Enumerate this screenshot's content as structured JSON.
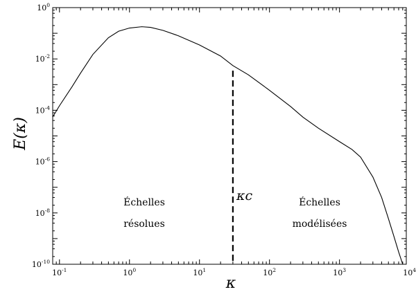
{
  "chart_data": {
    "type": "line",
    "xscale": "log",
    "yscale": "log",
    "xlim": [
      0.08,
      9000
    ],
    "ylim": [
      1e-10,
      1
    ],
    "xlabel": "κ",
    "ylabel": "E(κ)",
    "x_ticks": [
      {
        "value": 0.1,
        "base": "10",
        "exp": "-1"
      },
      {
        "value": 1,
        "base": "10",
        "exp": "0"
      },
      {
        "value": 10,
        "base": "10",
        "exp": "1"
      },
      {
        "value": 100,
        "base": "10",
        "exp": "2"
      },
      {
        "value": 1000,
        "base": "10",
        "exp": "3"
      },
      {
        "value": 10000,
        "base": "10",
        "exp": "4"
      }
    ],
    "y_ticks": [
      {
        "value": 1e-10,
        "base": "10",
        "exp": "-10"
      },
      {
        "value": 1e-08,
        "base": "10",
        "exp": "-8"
      },
      {
        "value": 1e-06,
        "base": "10",
        "exp": "-6"
      },
      {
        "value": 0.0001,
        "base": "10",
        "exp": "-4"
      },
      {
        "value": 0.01,
        "base": "10",
        "exp": "-2"
      },
      {
        "value": 1,
        "base": "10",
        "exp": "0"
      }
    ],
    "series": [
      {
        "x": [
          0.08,
          0.1,
          0.15,
          0.2,
          0.3,
          0.5,
          0.7,
          1.0,
          1.5,
          2.0,
          3.0,
          5.0,
          10,
          20,
          30,
          50,
          100,
          200,
          300,
          500,
          1000,
          1500,
          2000,
          3000,
          4000,
          5000,
          6000,
          7000,
          8000,
          8800
        ],
        "y": [
          5.5e-05,
          0.00015,
          0.0008,
          0.0028,
          0.015,
          0.067,
          0.12,
          0.16,
          0.18,
          0.17,
          0.13,
          0.08,
          0.035,
          0.013,
          0.0055,
          0.0024,
          0.0006,
          0.00014,
          5.4e-05,
          2e-05,
          6e-06,
          3e-06,
          1.5e-06,
          2.5e-07,
          4e-08,
          6e-09,
          1.2e-09,
          3e-10,
          1e-10,
          4e-11
        ]
      }
    ],
    "cutoff": {
      "x": 30,
      "y_top": 0.0035,
      "label": "κc"
    },
    "annotations": [
      {
        "lines": [
          "Échelles",
          "résolues"
        ]
      },
      {
        "lines": [
          "Échelles",
          "modélisées"
        ]
      }
    ]
  }
}
